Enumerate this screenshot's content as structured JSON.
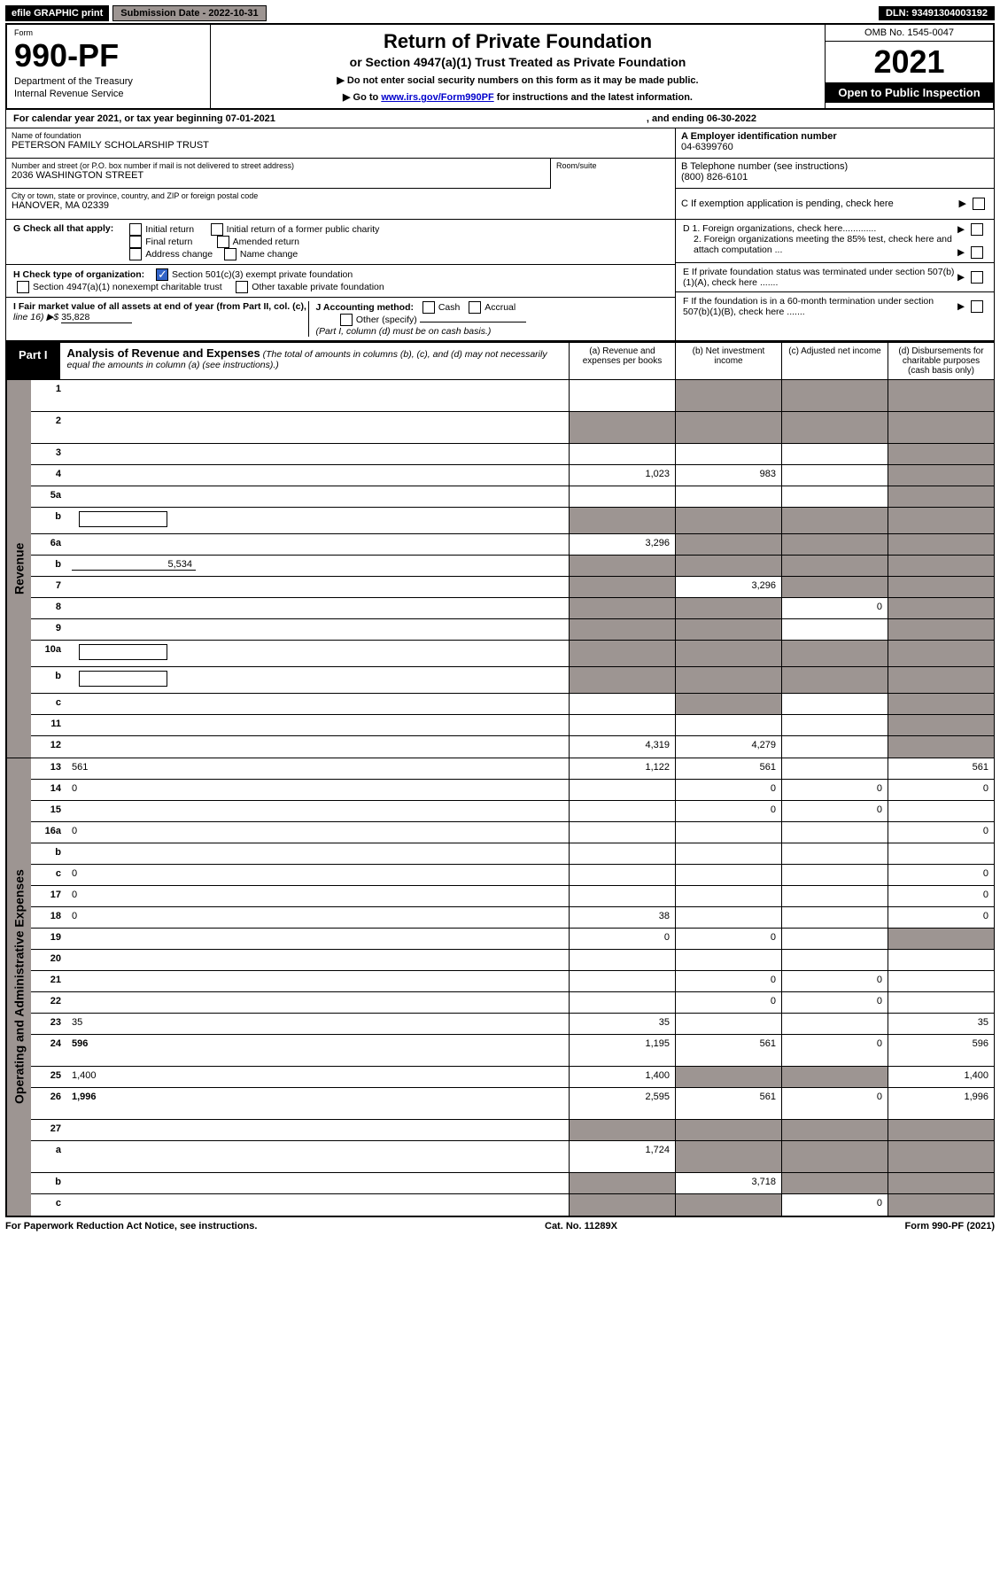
{
  "topbar": {
    "efile": "efile GRAPHIC print",
    "subdate_label": "Submission Date - 2022-10-31",
    "dln": "DLN: 93491304003192"
  },
  "header": {
    "form_label": "Form",
    "form_num": "990-PF",
    "dept1": "Department of the Treasury",
    "dept2": "Internal Revenue Service",
    "title": "Return of Private Foundation",
    "subtitle": "or Section 4947(a)(1) Trust Treated as Private Foundation",
    "instr1": "▶ Do not enter social security numbers on this form as it may be made public.",
    "instr2_pre": "▶ Go to ",
    "instr2_link": "www.irs.gov/Form990PF",
    "instr2_post": " for instructions and the latest information.",
    "omb": "OMB No. 1545-0047",
    "year": "2021",
    "open": "Open to Public Inspection"
  },
  "cal": {
    "prefix": "For calendar year 2021, or tax year beginning 07-01-2021",
    "ending": ", and ending 06-30-2022"
  },
  "info": {
    "name_label": "Name of foundation",
    "name": "PETERSON FAMILY SCHOLARSHIP TRUST",
    "addr_label": "Number and street (or P.O. box number if mail is not delivered to street address)",
    "addr": "2036 WASHINGTON STREET",
    "room_label": "Room/suite",
    "city_label": "City or town, state or province, country, and ZIP or foreign postal code",
    "city": "HANOVER, MA  02339",
    "a_label": "A Employer identification number",
    "a_val": "04-6399760",
    "b_label": "B Telephone number (see instructions)",
    "b_val": "(800) 826-6101",
    "c_label": "C If exemption application is pending, check here",
    "d1": "D 1. Foreign organizations, check here.............",
    "d2": "2. Foreign organizations meeting the 85% test, check here and attach computation ...",
    "e_label": "E  If private foundation status was terminated under section 507(b)(1)(A), check here .......",
    "f_label": "F  If the foundation is in a 60-month termination under section 507(b)(1)(B), check here ......."
  },
  "g": {
    "label": "G Check all that apply:",
    "initial": "Initial return",
    "initial_fp": "Initial return of a former public charity",
    "final": "Final return",
    "amended": "Amended return",
    "addr_change": "Address change",
    "name_change": "Name change"
  },
  "h": {
    "label": "H Check type of organization:",
    "s501": "Section 501(c)(3) exempt private foundation",
    "s4947": "Section 4947(a)(1) nonexempt charitable trust",
    "other_pf": "Other taxable private foundation"
  },
  "i": {
    "label": "I Fair market value of all assets at end of year (from Part II, col. (c),",
    "line16": "line 16) ▶$ ",
    "val": "35,828"
  },
  "j": {
    "label": "J Accounting method:",
    "cash": "Cash",
    "accrual": "Accrual",
    "other": "Other (specify)",
    "note": "(Part I, column (d) must be on cash basis.)"
  },
  "part1": {
    "tab": "Part I",
    "title": "Analysis of Revenue and Expenses",
    "desc": " (The total of amounts in columns (b), (c), and (d) may not necessarily equal the amounts in column (a) (see instructions).)",
    "col_a": "(a)   Revenue and expenses per books",
    "col_b": "(b)   Net investment income",
    "col_c": "(c)   Adjusted net income",
    "col_d": "(d)   Disbursements for charitable purposes (cash basis only)"
  },
  "side": {
    "revenue": "Revenue",
    "expenses": "Operating and Administrative Expenses"
  },
  "rows": [
    {
      "n": "1",
      "d": "",
      "a": "",
      "b": "",
      "c": "",
      "sb": true,
      "sc": true,
      "sd": true,
      "tall": true
    },
    {
      "n": "2",
      "d": "",
      "a": "",
      "b": "",
      "c": "",
      "sa": true,
      "sb": true,
      "sc": true,
      "sd": true,
      "tall": true
    },
    {
      "n": "3",
      "d": "",
      "a": "",
      "b": "",
      "c": "",
      "sd": true
    },
    {
      "n": "4",
      "d": "",
      "a": "1,023",
      "b": "983",
      "c": "",
      "sd": true
    },
    {
      "n": "5a",
      "d": "",
      "a": "",
      "b": "",
      "c": "",
      "sd": true
    },
    {
      "n": "b",
      "d": "",
      "a": "",
      "b": "",
      "c": "",
      "sa": true,
      "sb": true,
      "sc": true,
      "sd": true,
      "inner": true
    },
    {
      "n": "6a",
      "d": "",
      "a": "3,296",
      "b": "",
      "c": "",
      "sb": true,
      "sc": true,
      "sd": true
    },
    {
      "n": "b",
      "d": "",
      "inline_val": "5,534",
      "a": "",
      "b": "",
      "c": "",
      "sa": true,
      "sb": true,
      "sc": true,
      "sd": true,
      "under": true
    },
    {
      "n": "7",
      "d": "",
      "a": "",
      "b": "3,296",
      "c": "",
      "sa": true,
      "sc": true,
      "sd": true
    },
    {
      "n": "8",
      "d": "",
      "a": "",
      "b": "",
      "c": "0",
      "sa": true,
      "sb": true,
      "sd": true
    },
    {
      "n": "9",
      "d": "",
      "a": "",
      "b": "",
      "c": "",
      "sa": true,
      "sb": true,
      "sd": true
    },
    {
      "n": "10a",
      "d": "",
      "a": "",
      "b": "",
      "c": "",
      "sa": true,
      "sb": true,
      "sc": true,
      "sd": true,
      "inner": true
    },
    {
      "n": "b",
      "d": "",
      "a": "",
      "b": "",
      "c": "",
      "sa": true,
      "sb": true,
      "sc": true,
      "sd": true,
      "inner": true
    },
    {
      "n": "c",
      "d": "",
      "a": "",
      "b": "",
      "c": "",
      "sb": true,
      "sd": true
    },
    {
      "n": "11",
      "d": "",
      "a": "",
      "b": "",
      "c": "",
      "sd": true
    },
    {
      "n": "12",
      "d": "",
      "a": "4,319",
      "b": "4,279",
      "c": "",
      "sd": true,
      "bold": true
    }
  ],
  "exp_rows": [
    {
      "n": "13",
      "d": "561",
      "a": "1,122",
      "b": "561",
      "c": ""
    },
    {
      "n": "14",
      "d": "0",
      "a": "",
      "b": "0",
      "c": "0"
    },
    {
      "n": "15",
      "d": "",
      "a": "",
      "b": "0",
      "c": "0"
    },
    {
      "n": "16a",
      "d": "0",
      "a": "",
      "b": "",
      "c": ""
    },
    {
      "n": "b",
      "d": "",
      "a": "",
      "b": "",
      "c": ""
    },
    {
      "n": "c",
      "d": "0",
      "a": "",
      "b": "",
      "c": ""
    },
    {
      "n": "17",
      "d": "0",
      "a": "",
      "b": "",
      "c": ""
    },
    {
      "n": "18",
      "d": "0",
      "a": "38",
      "b": "",
      "c": ""
    },
    {
      "n": "19",
      "d": "",
      "a": "0",
      "b": "0",
      "c": "",
      "sd": true
    },
    {
      "n": "20",
      "d": "",
      "a": "",
      "b": "",
      "c": ""
    },
    {
      "n": "21",
      "d": "",
      "a": "",
      "b": "0",
      "c": "0"
    },
    {
      "n": "22",
      "d": "",
      "a": "",
      "b": "0",
      "c": "0"
    },
    {
      "n": "23",
      "d": "35",
      "a": "35",
      "b": "",
      "c": ""
    },
    {
      "n": "24",
      "d": "596",
      "a": "1,195",
      "b": "561",
      "c": "0",
      "bold": true,
      "tall": true
    },
    {
      "n": "25",
      "d": "1,400",
      "a": "1,400",
      "b": "",
      "c": "",
      "sb": true,
      "sc": true
    },
    {
      "n": "26",
      "d": "1,996",
      "a": "2,595",
      "b": "561",
      "c": "0",
      "bold": true,
      "tall": true
    },
    {
      "n": "27",
      "d": "",
      "a": "",
      "b": "",
      "c": "",
      "sa": true,
      "sb": true,
      "sc": true,
      "sd": true
    },
    {
      "n": "a",
      "d": "",
      "a": "1,724",
      "b": "",
      "c": "",
      "sb": true,
      "sc": true,
      "sd": true,
      "bold": true,
      "tall": true
    },
    {
      "n": "b",
      "d": "",
      "a": "",
      "b": "3,718",
      "c": "",
      "sa": true,
      "sc": true,
      "sd": true,
      "bold": true
    },
    {
      "n": "c",
      "d": "",
      "a": "",
      "b": "",
      "c": "0",
      "sa": true,
      "sb": true,
      "sd": true,
      "bold": true
    }
  ],
  "footer": {
    "left": "For Paperwork Reduction Act Notice, see instructions.",
    "mid": "Cat. No. 11289X",
    "right": "Form 990-PF (2021)"
  }
}
